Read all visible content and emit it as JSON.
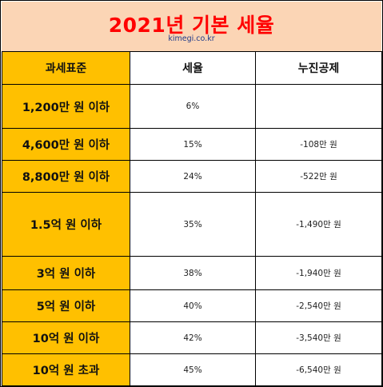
{
  "header": {
    "title": "2021년 기본 세율",
    "subtitle": "kimegi.co.kr"
  },
  "table": {
    "columns": [
      "과세표준",
      "세율",
      "누진공제"
    ],
    "rows": [
      {
        "base": "1,200만 원 이하",
        "rate": "6%",
        "deduction": ""
      },
      {
        "base": "4,600만 원 이하",
        "rate": "15%",
        "deduction": "-108만 원"
      },
      {
        "base": "8,800만 원 이하",
        "rate": "24%",
        "deduction": "-522만 원"
      },
      {
        "base": "1.5억 원 이하",
        "rate": "35%",
        "deduction": "-1,490만 원"
      },
      {
        "base": "3억 원 이하",
        "rate": "38%",
        "deduction": "-1,940만 원"
      },
      {
        "base": "5억 원 이하",
        "rate": "40%",
        "deduction": "-2,540만 원"
      },
      {
        "base": "10억 원 이하",
        "rate": "42%",
        "deduction": "-3,540만 원"
      },
      {
        "base": "10억 원 초과",
        "rate": "45%",
        "deduction": "-6,540만 원"
      }
    ]
  },
  "colors": {
    "title_band": "#fbd5b5",
    "title_text": "#ff0000",
    "base_column": "#ffc000"
  }
}
